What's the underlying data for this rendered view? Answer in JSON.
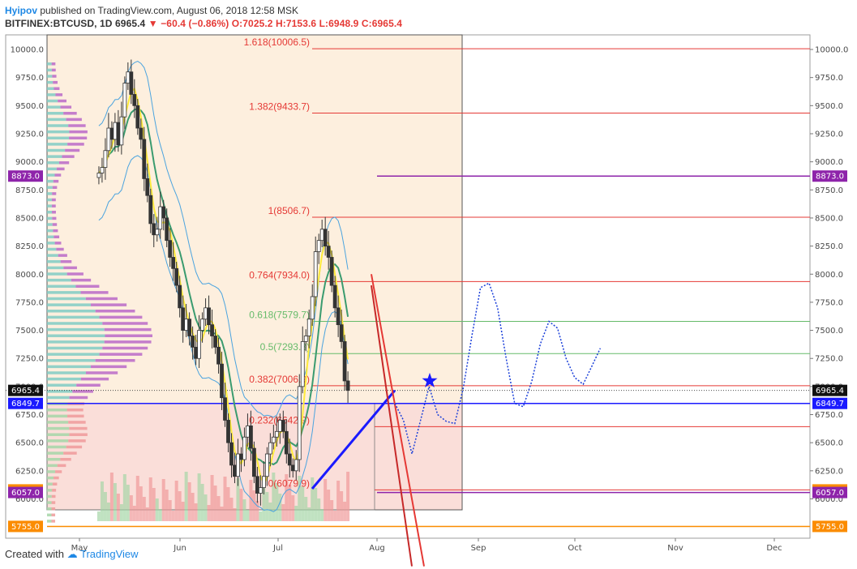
{
  "header": {
    "author": "Hyipov",
    "published": "published on TradingView.com, August 06, 2018 12:58 MSK"
  },
  "symbol_line": {
    "symbol": "BITFINEX:BTCUSD, 1D",
    "last": "6965.4",
    "change": "−60.4 (−0.86%)",
    "ohlc": "O:7025.2 H:7153.6 L:6948.9 C:6965.4"
  },
  "footer": {
    "created_with": "Created with",
    "brand": "TradingView"
  },
  "colors": {
    "fib": "#e53935",
    "fib_green": "#66bb6a",
    "resistance": "#8e24aa",
    "support_blue": "#1a1aff",
    "support_orange": "#fb8c00",
    "forecast": "#1a3fd9",
    "ema_yellow": "#ffeb3b",
    "ema_green": "#3a9b6f",
    "bands": "#4aa3df"
  },
  "chart_data": {
    "type": "candlestick",
    "x_axis_ticks": [
      "May",
      "Jun",
      "Jul",
      "Aug",
      "Sep",
      "Oct",
      "Nov",
      "Dec"
    ],
    "y_axis_ticks": [
      10000,
      9750,
      9500,
      9250,
      9000,
      8750,
      8500,
      8250,
      8000,
      7750,
      7500,
      7250,
      7000,
      6750,
      6500,
      6250,
      6000
    ],
    "ylim": [
      5650,
      10130
    ],
    "fib_levels": [
      {
        "label": "1.618(10006.5)",
        "value": 10006.5
      },
      {
        "label": "1.382(9433.7)",
        "value": 9433.7
      },
      {
        "label": "1(8506.7)",
        "value": 8506.7
      },
      {
        "label": "0.764(7934.0)",
        "value": 7934.0
      },
      {
        "label": "0.618(7579.7)",
        "value": 7579.7
      },
      {
        "label": "0.5(7293.3)",
        "value": 7293.3
      },
      {
        "label": "0.382(7006.9)",
        "value": 7006.9
      },
      {
        "label": "0.232(6642.9)",
        "value": 6642.9
      },
      {
        "label": "0(6079.9)",
        "value": 6079.9
      }
    ],
    "price_tags": [
      {
        "value": 8873.0,
        "label": "8873.0",
        "kind": "resistance"
      },
      {
        "value": 6965.4,
        "label": "6965.4",
        "kind": "last"
      },
      {
        "value": 6849.7,
        "label": "6849.7",
        "kind": "support"
      },
      {
        "value": 6079.9,
        "label": "6079.9",
        "kind": "fib0"
      },
      {
        "value": 6057.0,
        "label": "6057.0",
        "kind": "support2"
      },
      {
        "value": 5755.0,
        "label": "5755.0",
        "kind": "bottom"
      }
    ],
    "closes": [
      8900,
      8950,
      9100,
      9300,
      9200,
      9350,
      9150,
      9400,
      9700,
      9800,
      9600,
      9500,
      9300,
      9200,
      8850,
      8700,
      8450,
      8350,
      8400,
      8600,
      8500,
      8300,
      8150,
      8050,
      7900,
      7700,
      7500,
      7600,
      7450,
      7350,
      7250,
      7500,
      7600,
      7700,
      7550,
      7450,
      7350,
      7200,
      6900,
      6700,
      6500,
      6300,
      6200,
      6400,
      6350,
      6550,
      6650,
      6450,
      6200,
      6050,
      6100,
      6200,
      6400,
      6500,
      6550,
      6600,
      6700,
      6600,
      6400,
      6300,
      6250,
      6350,
      7000,
      7400,
      7450,
      7600,
      7800,
      8200,
      8300,
      8400,
      8250,
      8150,
      7900,
      7700,
      7550,
      7400,
      7050,
      6965.4
    ],
    "forecast_path": [
      [
        7010,
        6850
      ],
      [
        7018,
        6700
      ],
      [
        7026,
        6400
      ],
      [
        7034,
        6700
      ],
      [
        7042,
        7000
      ],
      [
        7050,
        6750
      ],
      [
        7058,
        6690
      ],
      [
        7066,
        6670
      ],
      [
        7074,
        6990
      ],
      [
        7082,
        7450
      ],
      [
        7090,
        7880
      ],
      [
        7098,
        7920
      ],
      [
        7106,
        7700
      ],
      [
        7114,
        7250
      ],
      [
        7122,
        6850
      ],
      [
        7130,
        6820
      ],
      [
        7138,
        7050
      ],
      [
        7146,
        7380
      ],
      [
        7154,
        7580
      ],
      [
        7162,
        7520
      ],
      [
        7170,
        7250
      ],
      [
        7178,
        7080
      ],
      [
        7186,
        7020
      ],
      [
        7194,
        7180
      ],
      [
        7202,
        7340
      ]
    ]
  }
}
